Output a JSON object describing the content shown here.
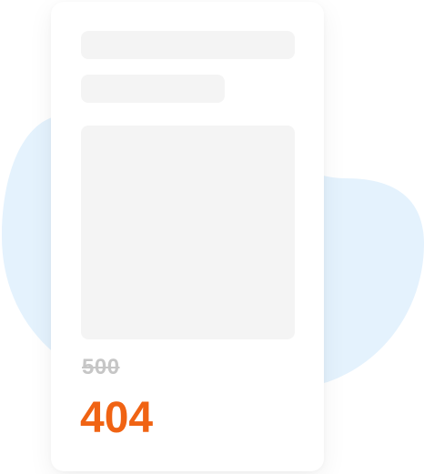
{
  "error": {
    "previous_code": "500",
    "current_code": "404"
  },
  "colors": {
    "blob": "#e4f2fd",
    "card": "#ffffff",
    "skeleton": "#f4f4f4",
    "previous_code": "#c6c6c6",
    "current_code": "#f06313"
  }
}
